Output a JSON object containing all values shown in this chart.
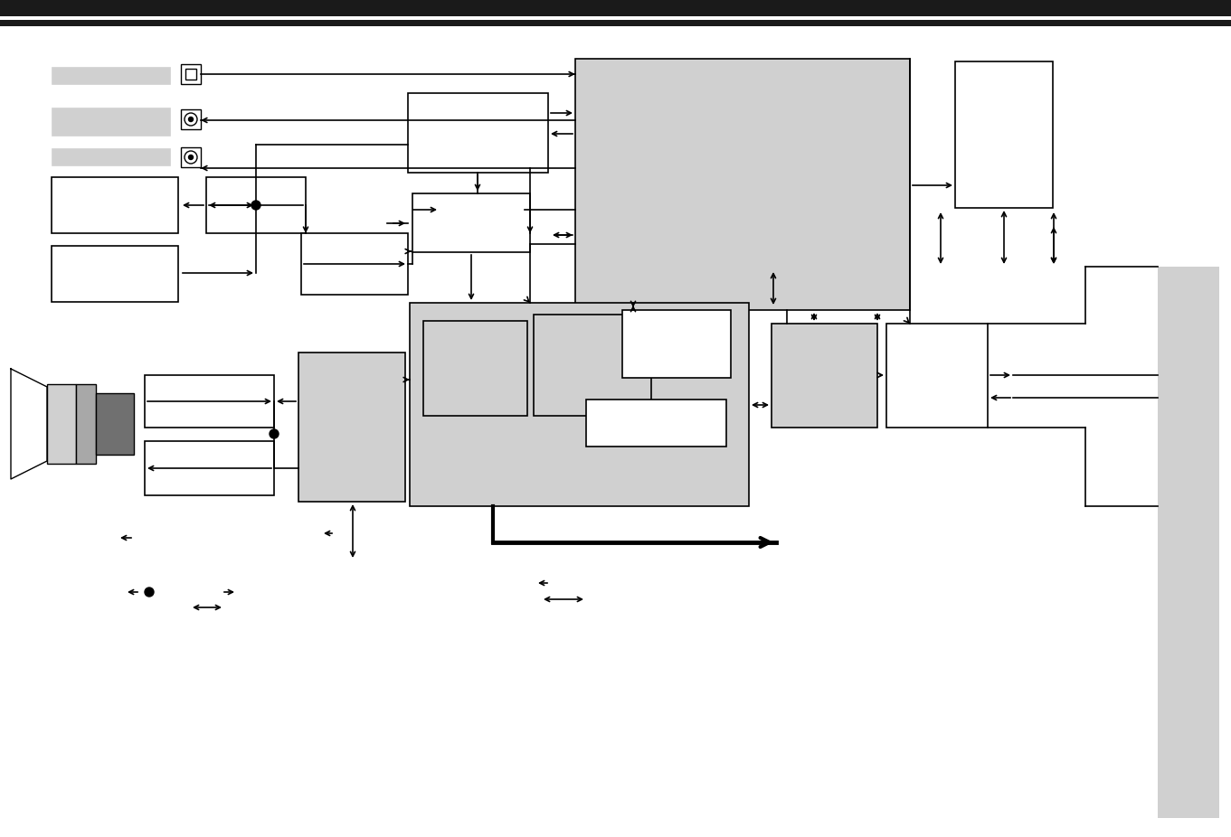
{
  "bg_color": "#ffffff",
  "header_color": "#1a1a1a",
  "light_gray": "#d0d0d0",
  "mid_gray": "#a8a8a8",
  "dark_gray": "#707070",
  "figsize": [
    13.61,
    9.26
  ],
  "dpi": 100
}
